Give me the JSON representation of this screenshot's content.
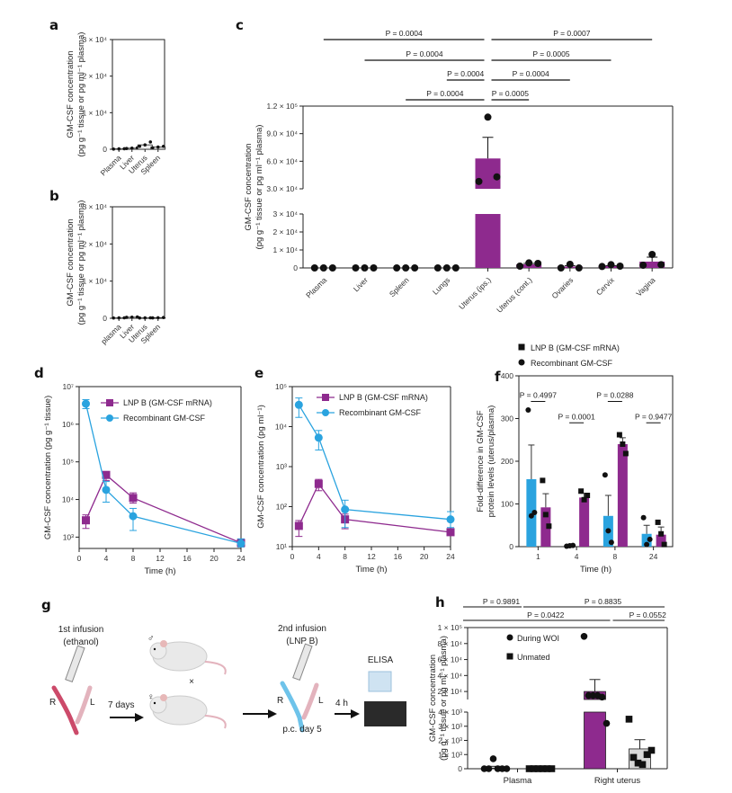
{
  "figure": {
    "panels": [
      "a",
      "b",
      "c",
      "d",
      "e",
      "f",
      "g",
      "h"
    ]
  },
  "colors": {
    "purple": "#8e2a8e",
    "blue": "#2aa3df",
    "black": "#111111",
    "grey_bar": "#d9d9d9"
  },
  "chart_data": [
    {
      "panel": "a",
      "type": "bar",
      "title": "",
      "xlabel": "",
      "ylabel": "GM-CSF concentration (pg g⁻¹ tissue or pg ml⁻¹ plasma)",
      "ylabel_line1": "GM-CSF concentration",
      "ylabel_line2": "(pg g⁻¹ tissue or pg ml⁻¹ plasma)",
      "categories": [
        "Plasma",
        "Liver",
        "Uterus",
        "Spleen"
      ],
      "values": [
        100,
        300,
        1200,
        600
      ],
      "points": [
        [
          50,
          100,
          150
        ],
        [
          200,
          300,
          400
        ],
        [
          800,
          1200,
          2000
        ],
        [
          400,
          600,
          800
        ]
      ],
      "ylim": [
        0,
        30000
      ],
      "yticks": [
        0,
        10000,
        20000,
        30000
      ],
      "ytick_labels": [
        "0",
        "1 × 10⁴",
        "2 × 10⁴",
        "3 × 10⁴"
      ]
    },
    {
      "panel": "b",
      "type": "bar",
      "title": "",
      "xlabel": "",
      "ylabel_line1": "GM-CSF concentration",
      "ylabel_line2": "(pg g⁻¹ tissue or pg ml⁻¹ plasma)",
      "categories": [
        "plasma",
        "Liver",
        "Uterus",
        "Spleen"
      ],
      "values": [
        100,
        300,
        100,
        150
      ],
      "points": [
        [
          80,
          100,
          120
        ],
        [
          250,
          300,
          350
        ],
        [
          80,
          100,
          120
        ],
        [
          100,
          150,
          200
        ]
      ],
      "ylim": [
        0,
        30000
      ],
      "yticks": [
        0,
        10000,
        20000,
        30000
      ],
      "ytick_labels": [
        "0",
        "1 × 10⁴",
        "2 × 10⁴",
        "3 × 10⁴"
      ]
    },
    {
      "panel": "c",
      "type": "bar",
      "title": "",
      "xlabel": "",
      "ylabel_line1": "GM-CSF concentration",
      "ylabel_line2": "(pg g⁻¹ tissue or pg ml⁻¹ plasma)",
      "axis_break": true,
      "lower_ylim": [
        0,
        30000
      ],
      "upper_ylim": [
        30000,
        120000
      ],
      "lower_ticks": [
        0,
        10000,
        20000,
        30000
      ],
      "lower_tick_labels": [
        "0",
        "1 × 10⁴",
        "2 × 10⁴",
        "3 × 10⁴"
      ],
      "upper_ticks": [
        30000,
        60000,
        90000,
        120000
      ],
      "upper_tick_labels": [
        "3.0 × 10⁴",
        "6.0 × 10⁴",
        "9.0 × 10⁴",
        "1.2 × 10⁵"
      ],
      "categories": [
        "Plasma",
        "Liver",
        "Spleen",
        "Lungs",
        "Uterus (ips.)",
        "Uterus (cont.)",
        "Ovaries",
        "Cervix",
        "Vagina"
      ],
      "values": [
        0,
        0,
        0,
        0,
        63000,
        2000,
        800,
        1000,
        3500
      ],
      "errors": [
        0,
        0,
        0,
        0,
        23000,
        500,
        500,
        300,
        2500
      ],
      "points": [
        [
          0,
          0,
          0
        ],
        [
          0,
          0,
          0
        ],
        [
          0,
          0,
          0
        ],
        [
          0,
          0,
          0
        ],
        [
          38000,
          108000,
          43000
        ],
        [
          1000,
          2800,
          2500
        ],
        [
          0,
          2000,
          0
        ],
        [
          800,
          1800,
          1000
        ],
        [
          1500,
          7500,
          1800
        ]
      ],
      "bar_colors": [
        "none",
        "none",
        "none",
        "none",
        "purple",
        "purple",
        "purple",
        "purple",
        "purple"
      ],
      "comparisons": [
        {
          "from": 0,
          "to": 4,
          "label": "P = 0.0004",
          "level": 4
        },
        {
          "from": 4,
          "to": 8,
          "label": "P = 0.0007",
          "level": 4
        },
        {
          "from": 1,
          "to": 4,
          "label": "P = 0.0004",
          "level": 3
        },
        {
          "from": 4,
          "to": 7,
          "label": "P = 0.0005",
          "level": 3
        },
        {
          "from": 3,
          "to": 4,
          "label": "P = 0.0004",
          "level": 2
        },
        {
          "from": 4,
          "to": 6,
          "label": "P = 0.0004",
          "level": 2
        },
        {
          "from": 2,
          "to": 4,
          "label": "P = 0.0004",
          "level": 1
        },
        {
          "from": 4,
          "to": 5,
          "label": "P = 0.0005",
          "level": 1
        }
      ]
    },
    {
      "panel": "d",
      "type": "line",
      "title": "",
      "xlabel": "Time (h)",
      "ylabel": "GM-CSF concentration (pg g⁻¹ tissue)",
      "yscale": "log",
      "xlim": [
        0,
        24
      ],
      "ylim": [
        500,
        10000000
      ],
      "xticks": [
        0,
        4,
        8,
        12,
        16,
        20,
        24
      ],
      "yticks": [
        1000,
        10000,
        100000,
        1000000,
        10000000
      ],
      "ytick_labels": [
        "10³",
        "10⁴",
        "10⁵",
        "10⁶",
        "10⁷"
      ],
      "legend": "top-right",
      "series": [
        {
          "name": "LNP B (GM-CSF mRNA)",
          "color": "purple",
          "marker": "square",
          "x": [
            1,
            4,
            8,
            24
          ],
          "y": [
            2800,
            45000,
            11000,
            700
          ],
          "err_low": [
            1700,
            32000,
            8000,
            550
          ],
          "err_high": [
            3900,
            55000,
            15000,
            850
          ]
        },
        {
          "name": "Recombinant GM-CSF",
          "color": "blue",
          "marker": "circle",
          "x": [
            1,
            4,
            8,
            24
          ],
          "y": [
            3500000,
            18000,
            3600,
            680
          ],
          "err_low": [
            2600000,
            8500,
            1500,
            550
          ],
          "err_high": [
            4500000,
            30000,
            5800,
            900
          ]
        }
      ]
    },
    {
      "panel": "e",
      "type": "line",
      "title": "",
      "xlabel": "Time (h)",
      "ylabel": "GM-CSF concentration (pg ml⁻¹)",
      "yscale": "log",
      "xlim": [
        0,
        24
      ],
      "ylim": [
        10,
        100000
      ],
      "xticks": [
        0,
        4,
        8,
        12,
        16,
        20,
        24
      ],
      "yticks": [
        10,
        100,
        1000,
        10000,
        100000
      ],
      "ytick_labels": [
        "10¹",
        "10²",
        "10³",
        "10⁴",
        "10⁵"
      ],
      "legend": "top-right",
      "series": [
        {
          "name": "LNP B (GM-CSF mRNA)",
          "color": "purple",
          "marker": "square",
          "x": [
            1,
            4,
            8,
            24
          ],
          "y": [
            33,
            370,
            48,
            23
          ],
          "err_low": [
            18,
            250,
            28,
            20
          ],
          "err_high": [
            45,
            480,
            65,
            26
          ]
        },
        {
          "name": "Recombinant GM-CSF",
          "color": "blue",
          "marker": "circle",
          "x": [
            1,
            4,
            8,
            24
          ],
          "y": [
            35000,
            5300,
            85,
            48
          ],
          "err_low": [
            17000,
            2600,
            30,
            30
          ],
          "err_high": [
            52000,
            8000,
            145,
            75
          ]
        }
      ]
    },
    {
      "panel": "f",
      "type": "bar",
      "title": "",
      "xlabel": "Time (h)",
      "ylabel_line1": "Fold-difference in GM-CSF",
      "ylabel_line2": "protein levels (uterus/plasma)",
      "categories": [
        "1",
        "4",
        "8",
        "24"
      ],
      "ylim": [
        0,
        400
      ],
      "yticks": [
        0,
        100,
        200,
        300,
        400
      ],
      "legend": "top-left-outside",
      "series": [
        {
          "name": "Recombinant GM-CSF",
          "color": "blue",
          "marker": "circle",
          "values": [
            158,
            2,
            72,
            30
          ],
          "errors": [
            80,
            1,
            48,
            20
          ],
          "points": [
            [
              320,
              72,
              80
            ],
            [
              1,
              2,
              3
            ],
            [
              168,
              37,
              10
            ],
            [
              68,
              5,
              17
            ]
          ]
        },
        {
          "name": "LNP B (GM-CSF mRNA)",
          "color": "purple",
          "marker": "square",
          "values": [
            92,
            115,
            240,
            28
          ],
          "errors": [
            32,
            10,
            15,
            18
          ],
          "points": [
            [
              155,
              75,
              48
            ],
            [
              130,
              110,
              120
            ],
            [
              262,
              240,
              218
            ],
            [
              57,
              30,
              5
            ]
          ]
        }
      ],
      "comparisons": [
        {
          "index": 0,
          "label": "P = 0.4997",
          "y": 340
        },
        {
          "index": 1,
          "label": "P = 0.0001",
          "y": 290
        },
        {
          "index": 2,
          "label": "P = 0.0288",
          "y": 340
        },
        {
          "index": 3,
          "label": "P = 0.9477",
          "y": 290
        }
      ]
    },
    {
      "panel": "h",
      "type": "bar",
      "title": "",
      "xlabel": "",
      "ylabel_line1": "GM-CSF concentration",
      "ylabel_line2": "(pg g⁻¹ tissue or pg ml⁻¹ plasma)",
      "axis_break": true,
      "lower_ylim": [
        0,
        4000
      ],
      "upper_ylim": [
        10000,
        100000
      ],
      "lower_ticks": [
        0,
        1000,
        2000,
        3000,
        4000
      ],
      "lower_tick_labels": [
        "0",
        "1 × 10³",
        "2 × 10³",
        "3 × 10³",
        "4 × 10³"
      ],
      "upper_ticks": [
        20000,
        40000,
        60000,
        80000,
        100000
      ],
      "upper_tick_labels": [
        "2 × 10⁴",
        "4 × 10⁴",
        "6 × 10⁴",
        "8 × 10⁴",
        "1 × 10⁵"
      ],
      "categories": [
        "Plasma",
        "Right uterus"
      ],
      "legend": "top-left",
      "series": [
        {
          "name": "During WOI",
          "color": "purple",
          "marker": "circle",
          "values": [
            50,
            20000
          ],
          "errors": [
            120,
            15000
          ],
          "points": [
            [
              0,
              0,
              700,
              0,
              0,
              0
            ],
            [
              89000,
              15000,
              15000,
              15000,
              13000,
              3200
            ]
          ]
        },
        {
          "name": "Unmated",
          "color": "grey_bar",
          "marker": "square",
          "values": [
            0,
            1400
          ],
          "errors": [
            0,
            650
          ],
          "points": [
            [
              0,
              0,
              0,
              0,
              0,
              0
            ],
            [
              3500,
              800,
              400,
              300,
              1000,
              1300
            ]
          ]
        }
      ],
      "comparisons": [
        {
          "label": "P = 0.9891",
          "level": 2
        },
        {
          "label": "P = 0.8835",
          "level": 2
        },
        {
          "label": "P = 0.0422",
          "level": 1
        },
        {
          "label": "P = 0.0552",
          "level": 1
        }
      ]
    }
  ],
  "diagram_g": {
    "first_infusion_line1": "1st infusion",
    "first_infusion_line2": "(ethanol)",
    "right_label": "R",
    "left_label": "L",
    "seven_days": "7 days",
    "male_symbol": "♂",
    "female_symbol": "♀",
    "cross": "×",
    "second_infusion_line1": "2nd infusion",
    "second_infusion_line2": "(LNP B)",
    "pc_day": "p.c. day 5",
    "four_h": "4 h",
    "elisa": "ELISA"
  }
}
